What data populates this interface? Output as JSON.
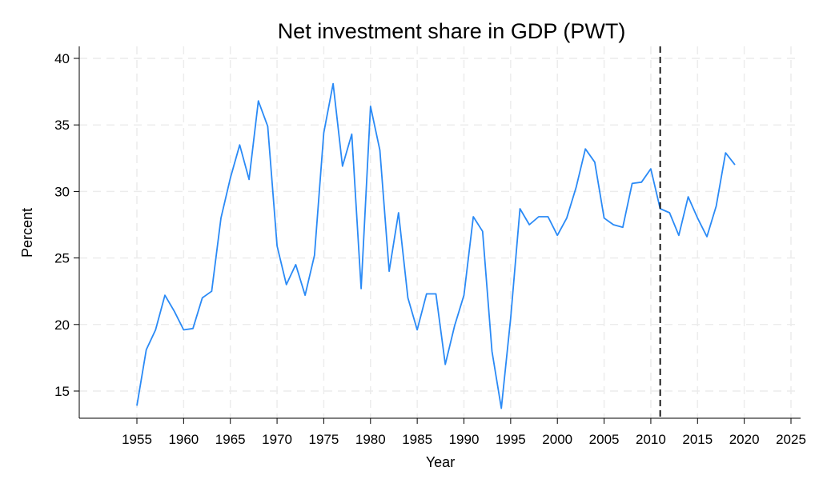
{
  "chart_data": {
    "type": "line",
    "title": "Net investment share in GDP (PWT)",
    "xlabel": "Year",
    "ylabel": "Percent",
    "xlim": [
      1949,
      2026
    ],
    "ylim": [
      13.2,
      40.9
    ],
    "xticks": [
      1955,
      1960,
      1965,
      1970,
      1975,
      1980,
      1985,
      1990,
      1995,
      2000,
      2005,
      2010,
      2015,
      2020,
      2025
    ],
    "yticks": [
      15,
      20,
      25,
      30,
      35,
      40
    ],
    "grid": true,
    "line_color": "#2a8af6",
    "vline": {
      "x": 2011,
      "style": "dashed",
      "color": "#000000"
    },
    "series": [
      {
        "name": "Net investment share",
        "x": [
          1955,
          1956,
          1957,
          1958,
          1959,
          1960,
          1961,
          1962,
          1963,
          1964,
          1965,
          1966,
          1967,
          1968,
          1969,
          1970,
          1971,
          1972,
          1973,
          1974,
          1975,
          1976,
          1977,
          1978,
          1979,
          1980,
          1981,
          1982,
          1983,
          1984,
          1985,
          1986,
          1987,
          1988,
          1989,
          1990,
          1991,
          1992,
          1993,
          1994,
          1995,
          1996,
          1997,
          1998,
          1999,
          2000,
          2001,
          2002,
          2003,
          2004,
          2005,
          2006,
          2007,
          2008,
          2009,
          2010,
          2011,
          2012,
          2013,
          2014,
          2015,
          2016,
          2017,
          2018,
          2019
        ],
        "values": [
          13.9,
          18.1,
          19.6,
          22.2,
          21.0,
          19.6,
          19.7,
          22.0,
          22.5,
          28.0,
          31.0,
          33.5,
          30.9,
          36.8,
          34.9,
          25.9,
          23.0,
          24.5,
          22.2,
          25.2,
          34.4,
          38.1,
          31.9,
          34.3,
          22.7,
          36.4,
          33.1,
          24.0,
          28.4,
          22.0,
          19.6,
          22.3,
          22.3,
          17.0,
          19.9,
          22.2,
          28.1,
          27.0,
          18.0,
          13.7,
          20.5,
          28.7,
          27.5,
          28.1,
          28.1,
          26.7,
          28.0,
          30.3,
          33.2,
          32.2,
          28.0,
          27.5,
          27.3,
          30.6,
          30.7,
          31.7,
          28.7,
          28.4,
          26.7,
          29.6,
          28.0,
          26.6,
          28.9,
          32.9,
          32.0
        ]
      }
    ]
  }
}
